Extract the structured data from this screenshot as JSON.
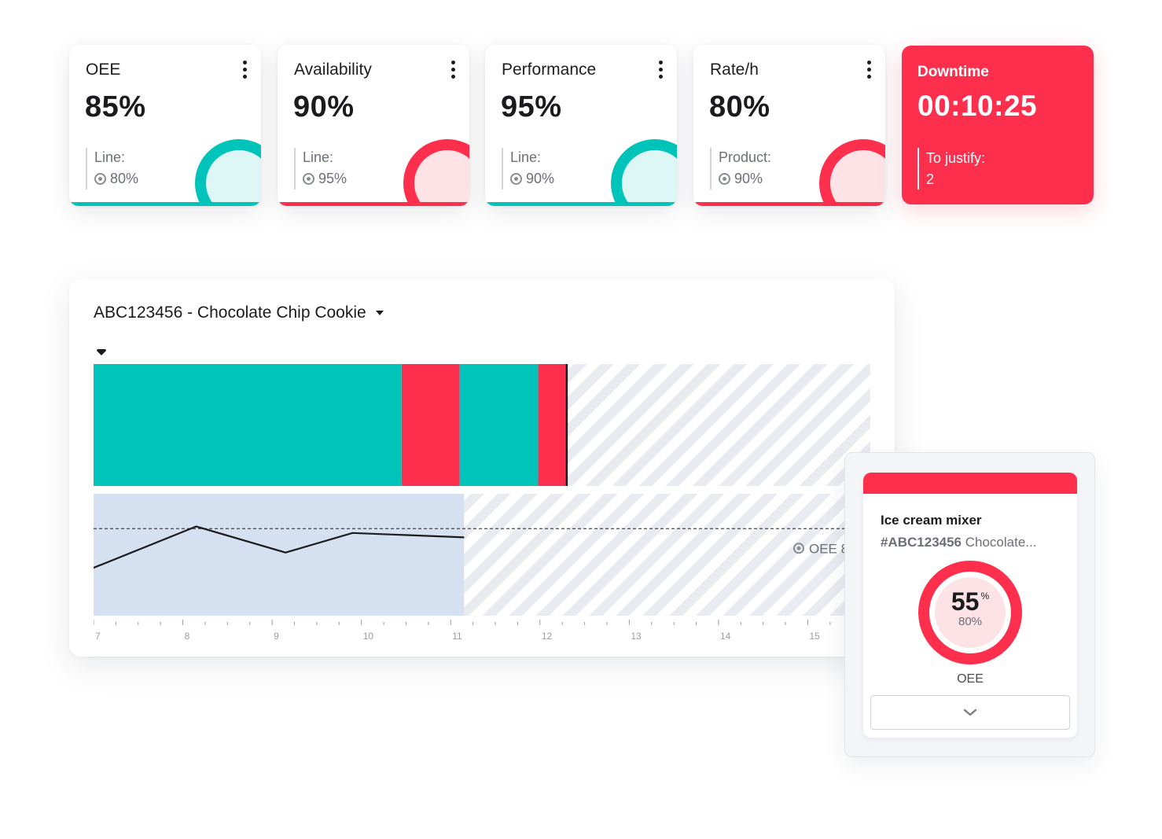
{
  "colors": {
    "teal": "#00c4b9",
    "red": "#fe2f4d",
    "tealLight": "#ddf7f6",
    "redLight": "#fde3e6",
    "oeeArea": "#d5e0f0",
    "hatch": "#e9ebf0"
  },
  "kpis": [
    {
      "title": "OEE",
      "value": "85%",
      "ref_label": "Line:",
      "ref_value": "80%",
      "status": "teal"
    },
    {
      "title": "Availability",
      "value": "90%",
      "ref_label": "Line:",
      "ref_value": "95%",
      "status": "red"
    },
    {
      "title": "Performance",
      "value": "95%",
      "ref_label": "Line:",
      "ref_value": "90%",
      "status": "teal"
    },
    {
      "title": "Rate/h",
      "value": "80%",
      "ref_label": "Product:",
      "ref_value": "90%",
      "status": "red"
    }
  ],
  "downtime": {
    "title": "Downtime",
    "value": "00:10:25",
    "ref_label": "To justify:",
    "ref_value": "2"
  },
  "panel": {
    "product_selector": "ABC123456 - Chocolate Chip Cookie",
    "oee_target_label": "OEE 8"
  },
  "chart_data": {
    "type": "area",
    "title": "ABC123456 - Chocolate Chip Cookie",
    "x_range": [
      7,
      15.7
    ],
    "x_ticks": [
      "7",
      "8",
      "9",
      "10",
      "11",
      "12",
      "13",
      "14",
      "15"
    ],
    "state_timeline": [
      {
        "start": 7.0,
        "end": 10.45,
        "state": "running"
      },
      {
        "start": 10.45,
        "end": 11.1,
        "state": "downtime"
      },
      {
        "start": 11.1,
        "end": 11.98,
        "state": "running"
      },
      {
        "start": 11.98,
        "end": 12.3,
        "state": "downtime"
      }
    ],
    "now": 12.3,
    "oee_series": {
      "x": [
        7.0,
        8.15,
        9.15,
        9.9,
        11.15
      ],
      "y": [
        0.62,
        0.81,
        0.69,
        0.78,
        0.76
      ]
    },
    "oee_y_range": [
      0.4,
      0.96
    ],
    "oee_target": 0.8,
    "oee_area_end": 11.15
  },
  "popover": {
    "machine": "Ice cream mixer",
    "order_id": "#ABC123456",
    "order_name": "Chocolate...",
    "gauge_value": "55",
    "gauge_unit": "%",
    "gauge_ref": "80%",
    "gauge_label": "OEE",
    "gauge_fraction": 0.55
  }
}
